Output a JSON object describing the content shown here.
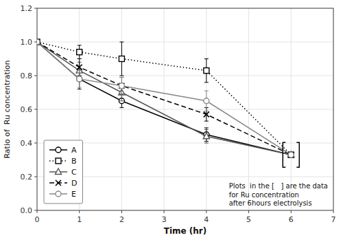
{
  "chart_data": {
    "type": "line",
    "xlabel": "Time (hr)",
    "ylabel": "Ratio of  Ru concentration",
    "annotation": "Plots  in the [   ] are the data\nfor Ru concentration\nafter 6hours electrolysis",
    "xlim": [
      0,
      7
    ],
    "ylim": [
      0,
      1.2
    ],
    "xticks": [
      0,
      1,
      2,
      3,
      4,
      5,
      6,
      7
    ],
    "yticks": [
      {
        "value": 0,
        "label": "0.0"
      },
      0.2,
      0.4,
      0.6,
      0.8,
      {
        "value": 1.0,
        "label": "1.0"
      },
      1.2
    ],
    "grid": true,
    "legend": "lower left",
    "x": [
      0,
      1,
      2,
      4,
      6
    ],
    "series": [
      {
        "name": "A",
        "color": "#000000",
        "marker": "circle",
        "line_style": "solid",
        "values": [
          1.0,
          0.78,
          0.65,
          0.45,
          0.33
        ],
        "errors": [
          0.0,
          0.06,
          0.04,
          0.04,
          null
        ]
      },
      {
        "name": "B",
        "color": "#000000",
        "marker": "square",
        "line_style": "dotted",
        "values": [
          1.0,
          0.94,
          0.9,
          0.83,
          0.33
        ],
        "errors": [
          0.0,
          0.04,
          0.1,
          0.07,
          null
        ]
      },
      {
        "name": "C",
        "color": "#555555",
        "marker": "triangle",
        "line_style": "solid",
        "values": [
          1.0,
          0.83,
          0.7,
          0.44,
          0.33
        ],
        "errors": [
          0.0,
          0.05,
          0.05,
          0.04,
          null
        ]
      },
      {
        "name": "D",
        "color": "#000000",
        "marker": "x",
        "line_style": "dashed",
        "values": [
          1.0,
          0.85,
          0.74,
          0.57,
          0.33
        ],
        "errors": [
          0.0,
          0.05,
          0.05,
          0.04,
          null
        ]
      },
      {
        "name": "E",
        "color": "#888888",
        "marker": "circle",
        "line_style": "solid",
        "values": [
          1.0,
          0.78,
          0.74,
          0.65,
          0.33
        ],
        "errors": [
          0.0,
          0.05,
          0.05,
          0.06,
          null
        ]
      }
    ]
  }
}
